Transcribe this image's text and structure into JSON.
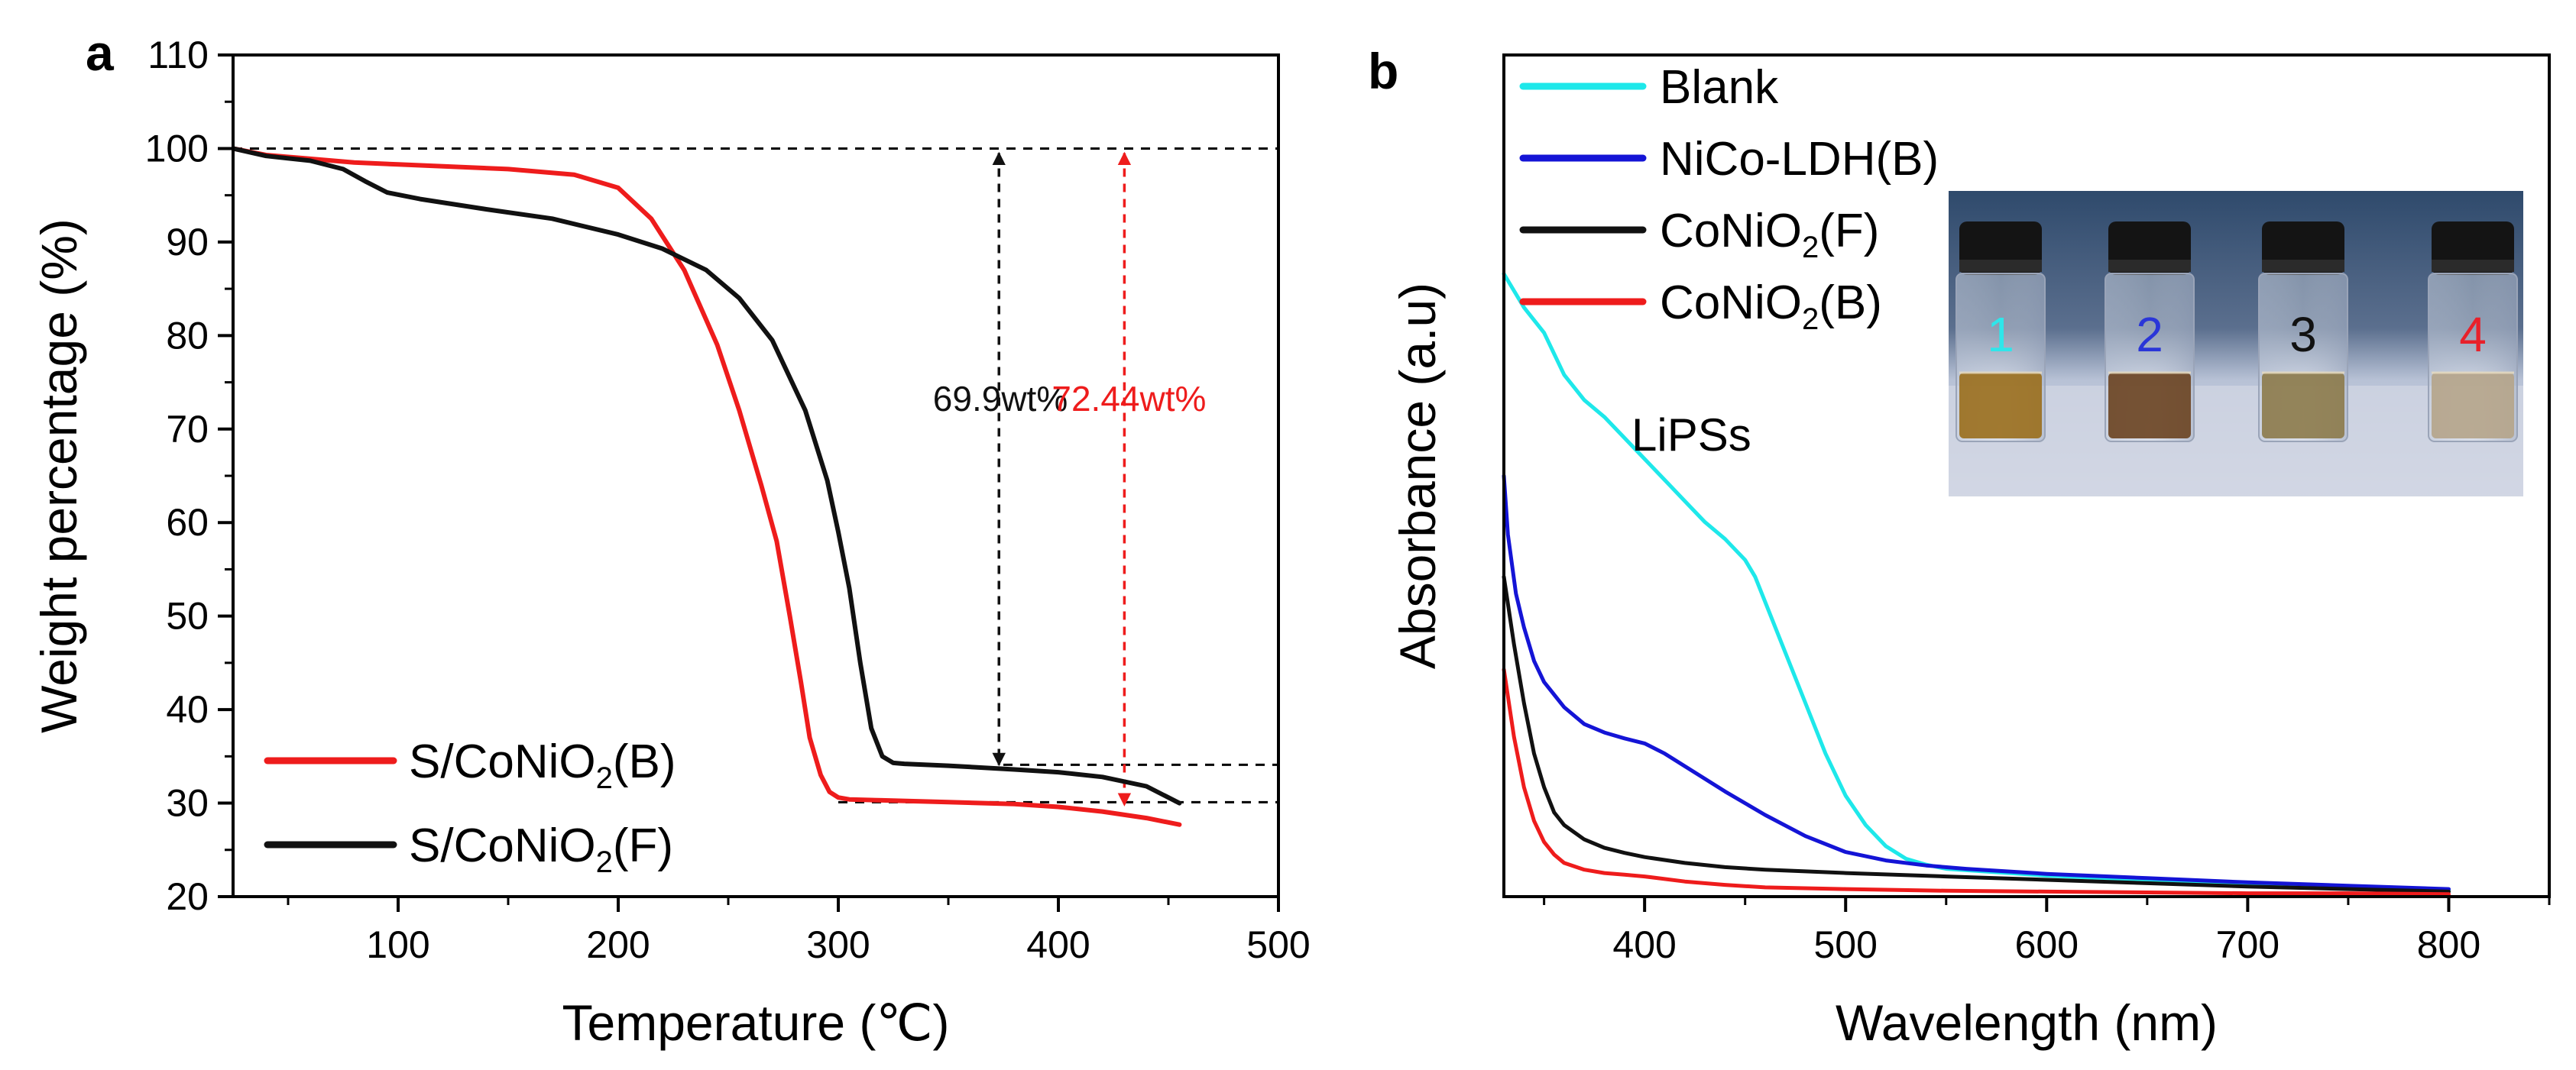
{
  "chart_data": [
    {
      "panel_label": "a",
      "type": "line",
      "xlabel": "Temperature (℃)",
      "ylabel": "Weight percentage (%)",
      "xlim": [
        25,
        500
      ],
      "ylim": [
        20,
        110
      ],
      "xticks": [
        100,
        200,
        300,
        400,
        500
      ],
      "yticks": [
        20,
        30,
        40,
        50,
        60,
        70,
        80,
        90,
        100,
        110
      ],
      "legend_position": "bottom-left",
      "series": [
        {
          "name": "S/CoNiO2(B)",
          "name_main": "S/CoNiO",
          "name_sub": "2",
          "name_tail": "(B)",
          "color": "#ee1c1c",
          "x": [
            25,
            40,
            60,
            80,
            100,
            150,
            180,
            200,
            215,
            230,
            245,
            255,
            265,
            272,
            278,
            283,
            287,
            292,
            296,
            300,
            305,
            320,
            350,
            380,
            400,
            420,
            440,
            455
          ],
          "y": [
            100,
            99.3,
            98.9,
            98.5,
            98.3,
            97.8,
            97.2,
            95.8,
            92.5,
            87,
            79,
            72,
            64,
            58,
            50,
            43,
            37,
            33,
            31.2,
            30.6,
            30.4,
            30.3,
            30.1,
            29.9,
            29.6,
            29.1,
            28.4,
            27.7
          ]
        },
        {
          "name": "S/CoNiO2(F)",
          "name_main": "S/CoNiO",
          "name_sub": "2",
          "name_tail": "(F)",
          "color": "#111111",
          "x": [
            25,
            40,
            60,
            75,
            85,
            95,
            110,
            140,
            170,
            200,
            220,
            240,
            255,
            270,
            285,
            295,
            300,
            305,
            310,
            315,
            320,
            325,
            330,
            350,
            380,
            400,
            420,
            440,
            455
          ],
          "y": [
            100,
            99.2,
            98.7,
            97.8,
            96.5,
            95.3,
            94.6,
            93.5,
            92.5,
            90.8,
            89.3,
            87,
            84,
            79.5,
            72,
            64.5,
            59,
            53,
            45,
            38,
            35,
            34.3,
            34.2,
            34,
            33.6,
            33.3,
            32.8,
            31.8,
            30
          ]
        }
      ],
      "reference_lines": [
        {
          "x_from": 25,
          "x_to": 500,
          "y": 100
        },
        {
          "x_from": 375,
          "x_to": 500,
          "y": 34.1
        },
        {
          "x_from": 300,
          "x_to": 500,
          "y": 30.1
        }
      ],
      "annotations": [
        {
          "label": "69.9wt%",
          "x": 373,
          "y_from": 100,
          "y_to": 33.6,
          "color": "#111111"
        },
        {
          "label": "72.44wt%",
          "x": 430,
          "y_from": 100,
          "y_to": 29.3,
          "color": "#ee1c1c"
        }
      ]
    },
    {
      "panel_label": "b",
      "type": "line",
      "xlabel": "Wavelength (nm)",
      "ylabel": "Absorbance (a.u)",
      "xlim": [
        330,
        850
      ],
      "ylim": [
        0,
        1
      ],
      "xticks": [
        400,
        500,
        600,
        700,
        800
      ],
      "yticks": [],
      "legend_position": "top-left",
      "inset_label": "LiPSs",
      "series": [
        {
          "name": "Blank",
          "name_main": "Blank",
          "name_sub": "",
          "name_tail": "",
          "color": "#1ee8ea",
          "x": [
            330,
            335,
            340,
            350,
            360,
            370,
            380,
            390,
            400,
            410,
            420,
            430,
            440,
            450,
            455,
            460,
            470,
            480,
            490,
            500,
            510,
            520,
            530,
            540,
            550,
            600,
            650,
            700,
            750,
            800
          ],
          "y": [
            0.74,
            0.72,
            0.7,
            0.67,
            0.62,
            0.59,
            0.57,
            0.545,
            0.52,
            0.495,
            0.47,
            0.445,
            0.425,
            0.4,
            0.38,
            0.35,
            0.29,
            0.23,
            0.17,
            0.12,
            0.085,
            0.06,
            0.045,
            0.038,
            0.033,
            0.025,
            0.02,
            0.016,
            0.012,
            0.008
          ]
        },
        {
          "name": "NiCo-LDH(B)",
          "name_main": "NiCo-LDH(B)",
          "name_sub": "",
          "name_tail": "",
          "color": "#1414d6",
          "x": [
            330,
            332,
            336,
            340,
            345,
            350,
            360,
            370,
            380,
            390,
            400,
            410,
            420,
            440,
            460,
            480,
            500,
            520,
            540,
            560,
            600,
            650,
            700,
            750,
            800
          ],
          "y": [
            0.5,
            0.43,
            0.36,
            0.32,
            0.28,
            0.255,
            0.225,
            0.205,
            0.195,
            0.188,
            0.182,
            0.17,
            0.155,
            0.125,
            0.097,
            0.072,
            0.053,
            0.043,
            0.037,
            0.033,
            0.027,
            0.022,
            0.017,
            0.013,
            0.009
          ]
        },
        {
          "name": "CoNiO2(F)",
          "name_main": "CoNiO",
          "name_sub": "2",
          "name_tail": "(F)",
          "color": "#111111",
          "x": [
            330,
            335,
            340,
            345,
            350,
            355,
            360,
            370,
            380,
            390,
            400,
            420,
            440,
            460,
            480,
            500,
            550,
            600,
            650,
            700,
            750,
            800
          ],
          "y": [
            0.38,
            0.3,
            0.23,
            0.17,
            0.13,
            0.1,
            0.085,
            0.068,
            0.058,
            0.052,
            0.047,
            0.04,
            0.035,
            0.032,
            0.03,
            0.028,
            0.024,
            0.02,
            0.016,
            0.012,
            0.009,
            0.006
          ]
        },
        {
          "name": "CoNiO2(B)",
          "name_main": "CoNiO",
          "name_sub": "2",
          "name_tail": "(B)",
          "color": "#ee1c1c",
          "x": [
            330,
            335,
            340,
            345,
            350,
            355,
            360,
            370,
            380,
            390,
            400,
            420,
            440,
            460,
            500,
            550,
            600,
            650,
            700,
            750,
            800
          ],
          "y": [
            0.27,
            0.19,
            0.13,
            0.09,
            0.065,
            0.05,
            0.04,
            0.032,
            0.028,
            0.026,
            0.024,
            0.018,
            0.014,
            0.011,
            0.009,
            0.007,
            0.006,
            0.005,
            0.004,
            0.004,
            0.003
          ]
        }
      ],
      "inset_photo": {
        "vial_numbers": [
          "1",
          "2",
          "3",
          "4"
        ],
        "vial_number_colors": [
          "#2fe6ea",
          "#2a36d8",
          "#111111",
          "#e8202a"
        ],
        "liquid_colors": [
          "#9a6e1c",
          "#6a4320",
          "#8c7a4a",
          "#b5a48a"
        ]
      }
    }
  ]
}
